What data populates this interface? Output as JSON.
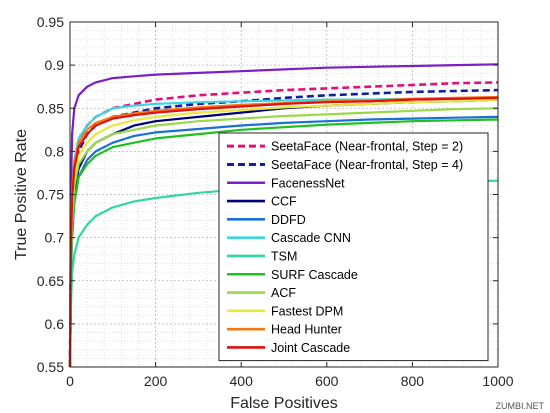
{
  "chart_data": {
    "type": "line",
    "title": "",
    "xlabel": "False Positives",
    "ylabel": "True Positive Rate",
    "xlim": [
      0,
      1000
    ],
    "ylim": [
      0.55,
      0.95
    ],
    "xticks": [
      0,
      200,
      400,
      600,
      800,
      1000
    ],
    "yticks": [
      0.55,
      0.6,
      0.65,
      0.7,
      0.75,
      0.8,
      0.85,
      0.9,
      0.95
    ],
    "grid": true,
    "legend_position": "bottom-right",
    "series": [
      {
        "name": "SeetaFace (Near-frontal, Step = 2)",
        "color": "#e0107a",
        "dash": "dashed",
        "x": [
          0,
          2,
          5,
          10,
          20,
          40,
          60,
          100,
          150,
          200,
          300,
          400,
          500,
          600,
          700,
          800,
          900,
          1000
        ],
        "y": [
          0.55,
          0.68,
          0.74,
          0.78,
          0.81,
          0.83,
          0.84,
          0.85,
          0.855,
          0.86,
          0.865,
          0.868,
          0.871,
          0.873,
          0.875,
          0.877,
          0.879,
          0.88
        ]
      },
      {
        "name": "SeetaFace (Near-frontal, Step = 4)",
        "color": "#1020a0",
        "dash": "dashed",
        "x": [
          0,
          2,
          5,
          10,
          20,
          40,
          60,
          100,
          150,
          200,
          300,
          400,
          500,
          600,
          700,
          800,
          900,
          1000
        ],
        "y": [
          0.55,
          0.67,
          0.73,
          0.77,
          0.8,
          0.82,
          0.83,
          0.84,
          0.845,
          0.85,
          0.855,
          0.858,
          0.862,
          0.865,
          0.867,
          0.869,
          0.87,
          0.871
        ]
      },
      {
        "name": "FacenessNet",
        "color": "#7a1fc8",
        "dash": "solid",
        "x": [
          0,
          2,
          5,
          10,
          20,
          40,
          60,
          100,
          150,
          200,
          300,
          400,
          500,
          600,
          700,
          800,
          900,
          1000
        ],
        "y": [
          0.55,
          0.75,
          0.82,
          0.85,
          0.865,
          0.875,
          0.88,
          0.885,
          0.887,
          0.889,
          0.891,
          0.893,
          0.895,
          0.897,
          0.898,
          0.899,
          0.9,
          0.901
        ]
      },
      {
        "name": "CCF",
        "color": "#00007a",
        "dash": "solid",
        "x": [
          0,
          2,
          5,
          10,
          20,
          40,
          60,
          100,
          150,
          200,
          300,
          400,
          500,
          600,
          700,
          800,
          900,
          1000
        ],
        "y": [
          0.55,
          0.66,
          0.71,
          0.75,
          0.78,
          0.8,
          0.81,
          0.82,
          0.83,
          0.835,
          0.84,
          0.845,
          0.85,
          0.853,
          0.855,
          0.857,
          0.858,
          0.86
        ]
      },
      {
        "name": "DDFD",
        "color": "#1a6fd8",
        "dash": "solid",
        "x": [
          0,
          2,
          5,
          10,
          20,
          40,
          60,
          100,
          150,
          200,
          300,
          400,
          500,
          600,
          700,
          800,
          900,
          1000
        ],
        "y": [
          0.55,
          0.65,
          0.7,
          0.74,
          0.77,
          0.79,
          0.8,
          0.81,
          0.818,
          0.822,
          0.826,
          0.83,
          0.833,
          0.835,
          0.837,
          0.838,
          0.839,
          0.84
        ]
      },
      {
        "name": "Cascade CNN",
        "color": "#3ad6e0",
        "dash": "solid",
        "x": [
          0,
          2,
          5,
          10,
          20,
          40,
          60,
          100,
          150,
          200,
          300,
          400,
          500,
          600,
          700,
          800,
          900,
          1000
        ],
        "y": [
          0.55,
          0.69,
          0.75,
          0.79,
          0.815,
          0.83,
          0.84,
          0.85,
          0.853,
          0.855,
          0.857,
          0.858,
          0.859,
          0.86,
          0.86,
          0.861,
          0.861,
          0.862
        ]
      },
      {
        "name": "TSM",
        "color": "#30d8a0",
        "dash": "solid",
        "x": [
          0,
          2,
          5,
          10,
          20,
          40,
          60,
          100,
          150,
          200,
          300,
          400,
          500,
          600,
          700,
          800,
          900,
          1000
        ],
        "y": [
          0.55,
          0.62,
          0.66,
          0.68,
          0.7,
          0.715,
          0.725,
          0.735,
          0.742,
          0.746,
          0.752,
          0.756,
          0.759,
          0.761,
          0.763,
          0.764,
          0.765,
          0.766
        ]
      },
      {
        "name": "SURF Cascade",
        "color": "#20c020",
        "dash": "solid",
        "x": [
          0,
          2,
          5,
          10,
          20,
          40,
          60,
          100,
          150,
          200,
          300,
          400,
          500,
          600,
          700,
          800,
          900,
          1000
        ],
        "y": [
          0.55,
          0.66,
          0.71,
          0.74,
          0.77,
          0.785,
          0.795,
          0.805,
          0.81,
          0.815,
          0.82,
          0.825,
          0.828,
          0.831,
          0.833,
          0.835,
          0.836,
          0.837
        ]
      },
      {
        "name": "ACF",
        "color": "#9ad84a",
        "dash": "solid",
        "x": [
          0,
          2,
          5,
          10,
          20,
          40,
          60,
          100,
          150,
          200,
          300,
          400,
          500,
          600,
          700,
          800,
          900,
          1000
        ],
        "y": [
          0.55,
          0.67,
          0.72,
          0.76,
          0.785,
          0.8,
          0.81,
          0.82,
          0.825,
          0.83,
          0.835,
          0.838,
          0.841,
          0.843,
          0.845,
          0.847,
          0.849,
          0.85
        ]
      },
      {
        "name": "Fastest DPM",
        "color": "#e8e840",
        "dash": "solid",
        "x": [
          0,
          2,
          5,
          10,
          20,
          40,
          60,
          100,
          150,
          200,
          300,
          400,
          500,
          600,
          700,
          800,
          900,
          1000
        ],
        "y": [
          0.55,
          0.68,
          0.735,
          0.77,
          0.795,
          0.81,
          0.82,
          0.83,
          0.836,
          0.84,
          0.845,
          0.848,
          0.851,
          0.853,
          0.855,
          0.857,
          0.858,
          0.86
        ]
      },
      {
        "name": "Head Hunter",
        "color": "#f07a10",
        "dash": "solid",
        "x": [
          0,
          2,
          5,
          10,
          20,
          40,
          60,
          100,
          150,
          200,
          300,
          400,
          500,
          600,
          700,
          800,
          900,
          1000
        ],
        "y": [
          0.55,
          0.7,
          0.75,
          0.785,
          0.81,
          0.825,
          0.833,
          0.84,
          0.844,
          0.847,
          0.851,
          0.854,
          0.856,
          0.858,
          0.859,
          0.861,
          0.862,
          0.863
        ]
      },
      {
        "name": "Joint Cascade",
        "color": "#e01010",
        "dash": "solid",
        "x": [
          0,
          2,
          5,
          10,
          20,
          40,
          60,
          100,
          150,
          200,
          300,
          400,
          500,
          600,
          700,
          800,
          900,
          1000
        ],
        "y": [
          0.55,
          0.69,
          0.745,
          0.78,
          0.805,
          0.82,
          0.83,
          0.838,
          0.842,
          0.845,
          0.849,
          0.852,
          0.855,
          0.857,
          0.858,
          0.86,
          0.861,
          0.862
        ]
      }
    ]
  },
  "watermark": "ZUMBI.NET"
}
